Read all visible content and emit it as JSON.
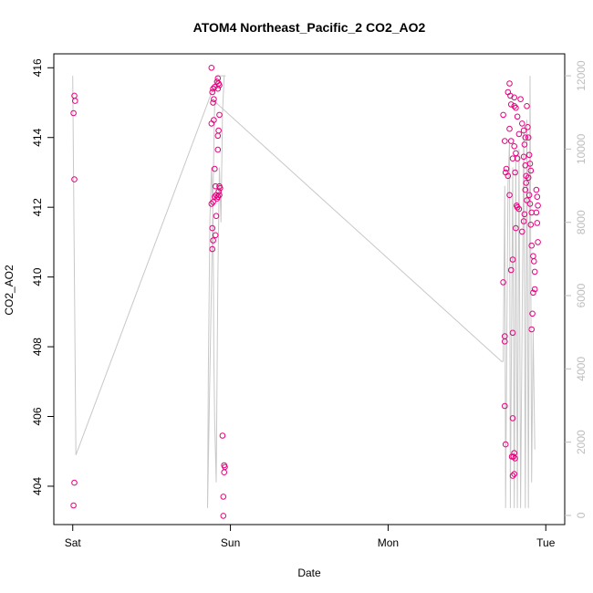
{
  "chart_data": {
    "type": "scatter",
    "title": "ATOM4 Northeast_Pacific_2 CO2_AO2",
    "xlabel": "Date",
    "ylabel": "CO2_AO2",
    "x_ticks": [
      "Sat",
      "Sun",
      "Mon",
      "Tue"
    ],
    "x_range_days": [
      -0.12,
      3.12
    ],
    "ylim": [
      402.9,
      416.4
    ],
    "yticks": [
      404,
      406,
      408,
      410,
      412,
      414,
      416
    ],
    "y2lim": [
      -250,
      12600
    ],
    "y2ticks": [
      0,
      2000,
      4000,
      6000,
      8000,
      10000,
      12000
    ],
    "grid": false,
    "colors": {
      "points": "#e6007e",
      "line": "#c8c8c8",
      "axis": "#000000",
      "right_axis": "#bdbdbd"
    },
    "series": [
      {
        "type": "scatter",
        "axis": "left",
        "points": [
          [
            0.01,
            415.2
          ],
          [
            0.015,
            415.05
          ],
          [
            0.005,
            414.7
          ],
          [
            0.01,
            412.8
          ],
          [
            0.01,
            404.1
          ],
          [
            0.005,
            403.45
          ],
          [
            0.88,
            416.0
          ],
          [
            0.89,
            415.4
          ],
          [
            0.885,
            415.3
          ],
          [
            0.9,
            415.45
          ],
          [
            0.895,
            415.1
          ],
          [
            0.89,
            415.0
          ],
          [
            0.88,
            414.4
          ],
          [
            0.895,
            414.5
          ],
          [
            0.92,
            415.7
          ],
          [
            0.925,
            415.55
          ],
          [
            0.92,
            415.4
          ],
          [
            0.93,
            415.5
          ],
          [
            0.915,
            415.6
          ],
          [
            0.93,
            414.65
          ],
          [
            0.925,
            414.2
          ],
          [
            0.92,
            414.05
          ],
          [
            0.92,
            413.65
          ],
          [
            0.9,
            413.1
          ],
          [
            0.905,
            412.6
          ],
          [
            0.91,
            412.35
          ],
          [
            0.9,
            412.3
          ],
          [
            0.89,
            412.15
          ],
          [
            0.88,
            412.1
          ],
          [
            0.915,
            412.25
          ],
          [
            0.92,
            412.3
          ],
          [
            0.925,
            412.45
          ],
          [
            0.93,
            412.6
          ],
          [
            0.935,
            412.55
          ],
          [
            0.93,
            412.35
          ],
          [
            0.91,
            411.75
          ],
          [
            0.885,
            411.4
          ],
          [
            0.905,
            411.2
          ],
          [
            0.89,
            411.05
          ],
          [
            0.885,
            410.8
          ],
          [
            0.95,
            405.45
          ],
          [
            0.96,
            404.6
          ],
          [
            0.965,
            404.55
          ],
          [
            0.96,
            404.4
          ],
          [
            0.955,
            403.7
          ],
          [
            0.955,
            403.15
          ],
          [
            2.73,
            414.65
          ],
          [
            2.74,
            413.9
          ],
          [
            2.76,
            415.3
          ],
          [
            2.77,
            415.55
          ],
          [
            2.775,
            415.2
          ],
          [
            2.78,
            414.95
          ],
          [
            2.77,
            414.25
          ],
          [
            2.78,
            413.9
          ],
          [
            2.79,
            413.4
          ],
          [
            2.75,
            413.1
          ],
          [
            2.745,
            413.0
          ],
          [
            2.76,
            412.9
          ],
          [
            2.77,
            412.35
          ],
          [
            2.73,
            409.85
          ],
          [
            2.74,
            408.3
          ],
          [
            2.74,
            408.15
          ],
          [
            2.74,
            406.3
          ],
          [
            2.745,
            405.2
          ],
          [
            2.78,
            410.2
          ],
          [
            2.79,
            410.5
          ],
          [
            2.79,
            408.4
          ],
          [
            2.8,
            415.15
          ],
          [
            2.8,
            414.9
          ],
          [
            2.81,
            414.85
          ],
          [
            2.82,
            414.6
          ],
          [
            2.83,
            414.1
          ],
          [
            2.8,
            413.75
          ],
          [
            2.81,
            413.55
          ],
          [
            2.82,
            413.4
          ],
          [
            2.805,
            413.0
          ],
          [
            2.815,
            412.05
          ],
          [
            2.82,
            412.0
          ],
          [
            2.83,
            411.95
          ],
          [
            2.81,
            411.4
          ],
          [
            2.84,
            415.1
          ],
          [
            2.85,
            414.4
          ],
          [
            2.86,
            414.2
          ],
          [
            2.87,
            414.0
          ],
          [
            2.865,
            413.8
          ],
          [
            2.86,
            413.45
          ],
          [
            2.87,
            413.2
          ],
          [
            2.875,
            412.9
          ],
          [
            2.87,
            412.5
          ],
          [
            2.88,
            412.2
          ],
          [
            2.865,
            411.8
          ],
          [
            2.86,
            411.6
          ],
          [
            2.85,
            411.3
          ],
          [
            2.875,
            412.7
          ],
          [
            2.88,
            414.9
          ],
          [
            2.885,
            414.3
          ],
          [
            2.89,
            414.0
          ],
          [
            2.895,
            413.5
          ],
          [
            2.9,
            413.25
          ],
          [
            2.905,
            413.05
          ],
          [
            2.89,
            412.85
          ],
          [
            2.895,
            412.35
          ],
          [
            2.9,
            412.1
          ],
          [
            2.91,
            411.85
          ],
          [
            2.905,
            411.5
          ],
          [
            2.91,
            410.9
          ],
          [
            2.92,
            410.6
          ],
          [
            2.925,
            410.45
          ],
          [
            2.93,
            410.15
          ],
          [
            2.93,
            409.65
          ],
          [
            2.92,
            409.55
          ],
          [
            2.915,
            408.95
          ],
          [
            2.91,
            408.5
          ],
          [
            2.94,
            412.5
          ],
          [
            2.945,
            412.3
          ],
          [
            2.95,
            412.05
          ],
          [
            2.94,
            411.85
          ],
          [
            2.945,
            411.55
          ],
          [
            2.95,
            411.0
          ],
          [
            2.79,
            405.95
          ],
          [
            2.795,
            404.85
          ],
          [
            2.8,
            404.95
          ],
          [
            2.805,
            404.8
          ],
          [
            2.79,
            404.3
          ],
          [
            2.8,
            404.35
          ],
          [
            2.785,
            404.85
          ]
        ]
      },
      {
        "type": "line",
        "axis": "right",
        "points": [
          [
            0.0,
            12000
          ],
          [
            0.02,
            1650
          ],
          [
            0.92,
            12000
          ],
          [
            0.97,
            12000
          ],
          [
            0.96,
            12000
          ],
          [
            0.95,
            11000
          ],
          [
            0.94,
            8000
          ],
          [
            0.93,
            9500
          ],
          [
            0.92,
            6500
          ],
          [
            0.91,
            900
          ],
          [
            0.9,
            2600
          ],
          [
            0.895,
            4300
          ],
          [
            0.89,
            8000
          ],
          [
            0.88,
            9500
          ],
          [
            0.87,
            8100
          ],
          [
            0.86,
            4000
          ],
          [
            0.855,
            200
          ],
          [
            0.9,
            11300
          ],
          [
            2.72,
            4200
          ],
          [
            2.73,
            4200
          ],
          [
            2.74,
            9000
          ],
          [
            2.745,
            200
          ],
          [
            2.76,
            9000
          ],
          [
            2.77,
            10200
          ],
          [
            2.775,
            200
          ],
          [
            2.79,
            9500
          ],
          [
            2.8,
            200
          ],
          [
            2.81,
            9800
          ],
          [
            2.82,
            200
          ],
          [
            2.83,
            10000
          ],
          [
            2.84,
            200
          ],
          [
            2.86,
            10500
          ],
          [
            2.87,
            200
          ],
          [
            2.88,
            10800
          ],
          [
            2.89,
            200
          ],
          [
            2.9,
            12000
          ],
          [
            2.91,
            900
          ],
          [
            2.92,
            5000
          ],
          [
            2.93,
            1800
          ]
        ]
      }
    ]
  }
}
